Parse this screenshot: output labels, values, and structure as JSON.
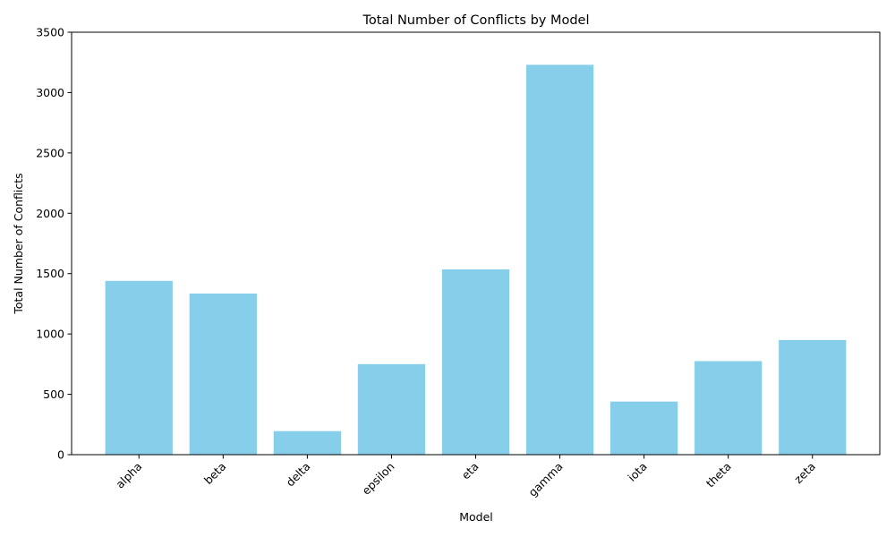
{
  "chart_data": {
    "type": "bar",
    "title": "Total Number of Conflicts by Model",
    "xlabel": "Model",
    "ylabel": "Total Number of Conflicts",
    "categories": [
      "alpha",
      "beta",
      "delta",
      "epsilon",
      "eta",
      "gamma",
      "iota",
      "theta",
      "zeta"
    ],
    "values": [
      1440,
      1335,
      195,
      750,
      1535,
      3230,
      440,
      775,
      950
    ],
    "ylim": [
      0,
      3500
    ],
    "yticks": [
      "0",
      "500",
      "1000",
      "1500",
      "2000",
      "2500",
      "3000",
      "3500"
    ],
    "grid": false,
    "legend": "none",
    "bar_color": "#87ceeb"
  }
}
